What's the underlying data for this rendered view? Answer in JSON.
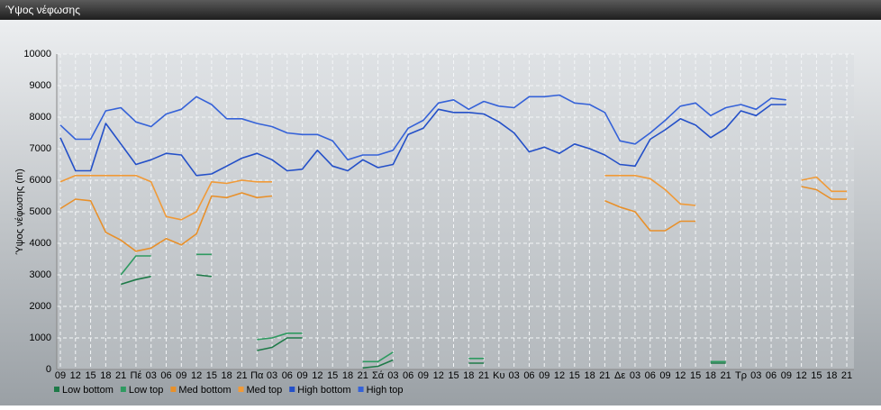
{
  "window_title": "Ύψος νέφωσης",
  "chart_data": {
    "type": "line",
    "ylabel": "Ύψος νέφωσης (m)",
    "categories": [
      "09",
      "12",
      "15",
      "18",
      "21",
      "Πέ",
      "03",
      "06",
      "09",
      "12",
      "15",
      "18",
      "21",
      "Πα",
      "03",
      "06",
      "09",
      "12",
      "15",
      "18",
      "21",
      "Σά",
      "03",
      "06",
      "09",
      "12",
      "15",
      "18",
      "21",
      "Κυ",
      "03",
      "06",
      "09",
      "12",
      "15",
      "18",
      "21",
      "Δε",
      "03",
      "06",
      "09",
      "12",
      "15",
      "18",
      "21",
      "Τρ",
      "03",
      "06",
      "09",
      "12",
      "15",
      "18",
      "21"
    ],
    "series": [
      {
        "name": "Low bottom",
        "color": "#1e7a48",
        "values": [
          null,
          null,
          null,
          null,
          2700,
          2850,
          2950,
          null,
          null,
          3000,
          2950,
          null,
          null,
          600,
          700,
          1000,
          1000,
          null,
          null,
          null,
          50,
          100,
          300,
          null,
          null,
          null,
          null,
          200,
          200,
          null,
          null,
          null,
          null,
          null,
          null,
          null,
          null,
          null,
          null,
          null,
          null,
          null,
          null,
          200,
          200,
          null,
          null,
          null,
          null,
          null,
          null,
          null,
          null
        ]
      },
      {
        "name": "Low top",
        "color": "#2e9a60",
        "values": [
          null,
          null,
          null,
          null,
          3000,
          3600,
          3600,
          null,
          null,
          3650,
          3650,
          null,
          null,
          950,
          1000,
          1150,
          1150,
          null,
          null,
          null,
          250,
          250,
          550,
          null,
          null,
          null,
          null,
          350,
          350,
          null,
          null,
          null,
          null,
          null,
          null,
          null,
          null,
          null,
          null,
          null,
          null,
          null,
          null,
          250,
          250,
          null,
          null,
          null,
          null,
          null,
          null,
          null,
          null
        ]
      },
      {
        "name": "Med bottom",
        "color": "#e8902a",
        "values": [
          5100,
          5400,
          5350,
          4350,
          4100,
          3750,
          3850,
          4150,
          3950,
          4300,
          5500,
          5450,
          5600,
          5450,
          5500,
          null,
          null,
          null,
          null,
          null,
          null,
          null,
          null,
          null,
          null,
          null,
          null,
          null,
          null,
          null,
          null,
          null,
          null,
          null,
          null,
          null,
          5350,
          5150,
          5000,
          4400,
          4400,
          4700,
          4700,
          null,
          null,
          null,
          null,
          null,
          null,
          5800,
          5700,
          5400,
          5400
        ]
      },
      {
        "name": "Med top",
        "color": "#f09a38",
        "values": [
          5950,
          6150,
          6150,
          6150,
          6150,
          6150,
          5950,
          4850,
          4750,
          5000,
          5950,
          5900,
          6000,
          5950,
          5950,
          null,
          null,
          null,
          null,
          null,
          null,
          null,
          null,
          null,
          null,
          null,
          null,
          null,
          null,
          null,
          null,
          null,
          null,
          null,
          null,
          null,
          6150,
          6150,
          6150,
          6050,
          5700,
          5250,
          5200,
          null,
          null,
          null,
          null,
          null,
          null,
          6000,
          6100,
          5650,
          5650
        ]
      },
      {
        "name": "High bottom",
        "color": "#2450c8",
        "values": [
          7350,
          6300,
          6300,
          7800,
          7150,
          6500,
          6650,
          6850,
          6800,
          6150,
          6200,
          6450,
          6700,
          6850,
          6650,
          6300,
          6350,
          6950,
          6450,
          6300,
          6650,
          6400,
          6500,
          7450,
          7650,
          8250,
          8150,
          8150,
          8100,
          7850,
          7500,
          6900,
          7050,
          6850,
          7150,
          7000,
          6800,
          6500,
          6450,
          7300,
          7600,
          7950,
          7750,
          7350,
          7650,
          8200,
          8050,
          8400,
          8400,
          null,
          null,
          null,
          null
        ]
      },
      {
        "name": "High top",
        "color": "#3562d8",
        "values": [
          7750,
          7300,
          7300,
          8200,
          8300,
          7850,
          7700,
          8100,
          8250,
          8650,
          8400,
          7950,
          7950,
          7800,
          7700,
          7500,
          7450,
          7450,
          7250,
          6650,
          6800,
          6800,
          6950,
          7650,
          7900,
          8450,
          8550,
          8250,
          8500,
          8350,
          8300,
          8650,
          8650,
          8700,
          8450,
          8400,
          8150,
          7250,
          7150,
          7500,
          7900,
          8350,
          8450,
          8050,
          8300,
          8400,
          8250,
          8600,
          8550,
          null,
          null,
          null,
          null
        ]
      }
    ],
    "ylim": [
      0,
      10000
    ],
    "yticks": [
      0,
      1000,
      2000,
      3000,
      4000,
      5000,
      6000,
      7000,
      8000,
      9000,
      10000
    ],
    "grid": true
  }
}
